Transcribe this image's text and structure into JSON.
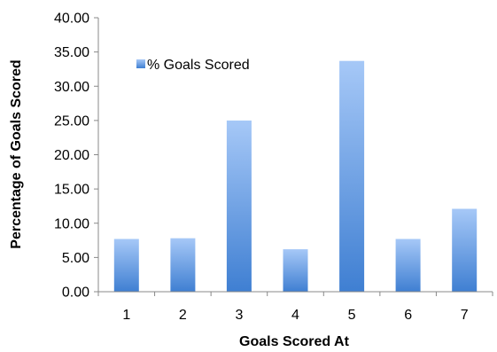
{
  "chart_data": {
    "type": "bar",
    "categories": [
      "1",
      "2",
      "3",
      "4",
      "5",
      "6",
      "7"
    ],
    "series": [
      {
        "name": "% Goals Scored",
        "values": [
          7.7,
          7.8,
          25.0,
          6.2,
          33.7,
          7.7,
          12.1
        ]
      }
    ],
    "xlabel": "Goals Scored At",
    "ylabel": "Percentage of Goals Scored",
    "ylim": [
      0,
      40
    ],
    "yticks": [
      "0.00",
      "5.00",
      "10.00",
      "15.00",
      "20.00",
      "25.00",
      "30.00",
      "35.00",
      "40.00"
    ],
    "grid": false,
    "legend_position": "top-left-inside",
    "colors": {
      "bar_top": "#a6c8f7",
      "bar_bottom": "#3f7fd2",
      "axis": "#888888"
    }
  }
}
